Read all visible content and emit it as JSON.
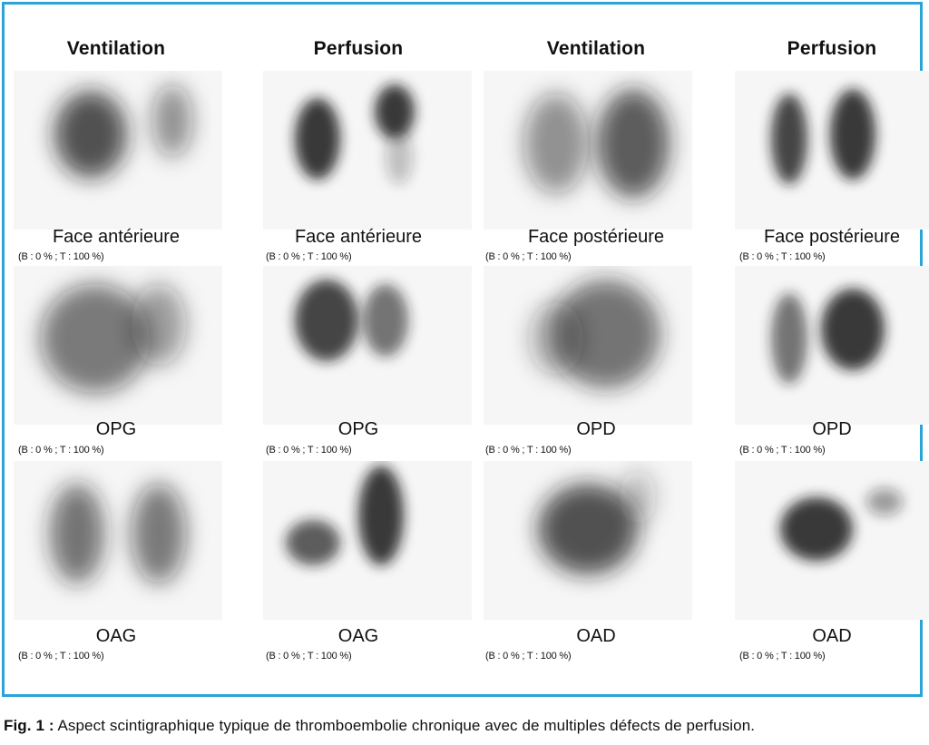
{
  "columns": [
    {
      "header": "Ventilation",
      "mode": "ventilation"
    },
    {
      "header": "Perfusion",
      "mode": "perfusion"
    },
    {
      "header": "Ventilation",
      "mode": "ventilation"
    },
    {
      "header": "Perfusion",
      "mode": "perfusion"
    }
  ],
  "rows": [
    {
      "labels": [
        "Face antérieure",
        "Face antérieure",
        "Face postérieure",
        "Face postérieure"
      ]
    },
    {
      "labels": [
        "OPG",
        "OPG",
        "OPD",
        "OPD"
      ]
    },
    {
      "labels": [
        "OAG",
        "OAG",
        "OAD",
        "OAD"
      ]
    }
  ],
  "scale_text": "(B : 0 % ; T : 100 %)",
  "caption": {
    "lead": "Fig. 1 :",
    "text": " Aspect scintigraphique typique de thromboembolie chronique avec de multiples défects de perfusion."
  },
  "colors": {
    "frame": "#29a3d8",
    "tracer": "#1a1a1a"
  }
}
